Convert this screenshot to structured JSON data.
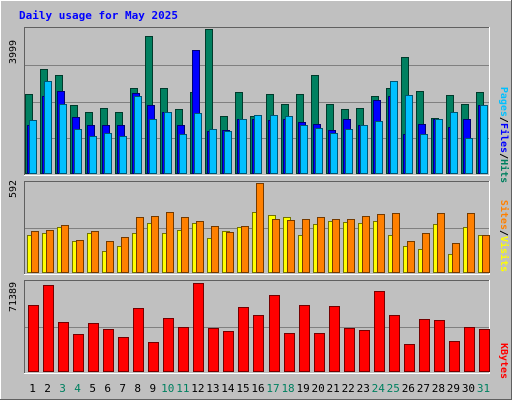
{
  "chart_data": [
    {
      "type": "bar",
      "title": "Daily usage for May 2025",
      "panel": "hits-files-pages",
      "categories": [
        "1",
        "2",
        "3",
        "4",
        "5",
        "6",
        "7",
        "8",
        "9",
        "10",
        "11",
        "12",
        "13",
        "14",
        "15",
        "16",
        "17",
        "18",
        "19",
        "20",
        "21",
        "22",
        "23",
        "24",
        "25",
        "26",
        "27",
        "28",
        "29",
        "30",
        "31"
      ],
      "weekend_days": [
        "3",
        "4",
        "10",
        "11",
        "17",
        "18",
        "24",
        "25",
        "31"
      ],
      "ytick_label": "3999",
      "ylim": [
        0,
        3999
      ],
      "right_labels": [
        "Hits",
        "Files",
        "Pages"
      ],
      "separator": "/",
      "series": [
        {
          "name": "Hits",
          "color": "#008060",
          "values": [
            2216,
            2886,
            2732,
            1890,
            1715,
            1828,
            1715,
            2376,
            3818,
            2364,
            1790,
            2251,
            4000,
            1600,
            2251,
            1600,
            2216,
            1920,
            2216,
            2732,
            1920,
            1790,
            1815,
            2148,
            2376,
            3224,
            2290,
            1545,
            2190,
            1920,
            2251
          ]
        },
        {
          "name": "Files",
          "color": "#0000ff",
          "values": [
            1350,
            2150,
            2280,
            1566,
            1345,
            1345,
            1346,
            2232,
            1894,
            1713,
            1345,
            3407,
            1196,
            1227,
            1527,
            1527,
            1501,
            1527,
            1421,
            1389,
            1203,
            1527,
            1345,
            2053,
            2150,
            1092,
            1389,
            1510,
            1310,
            1510,
            1900
          ]
        },
        {
          "name": "Pages",
          "color": "#00c0ff",
          "values": [
            1480,
            2560,
            1920,
            1232,
            1060,
            1140,
            1060,
            2156,
            1530,
            1700,
            1100,
            1680,
            1232,
            1190,
            1520,
            1630,
            1630,
            1600,
            1340,
            1256,
            1140,
            1232,
            1340,
            1450,
            2560,
            2190,
            1100,
            1520,
            1720,
            1000,
            1900
          ]
        }
      ]
    },
    {
      "type": "bar",
      "panel": "visits-sites",
      "categories": [
        "1",
        "2",
        "3",
        "4",
        "5",
        "6",
        "7",
        "8",
        "9",
        "10",
        "11",
        "12",
        "13",
        "14",
        "15",
        "16",
        "17",
        "18",
        "19",
        "20",
        "21",
        "22",
        "23",
        "24",
        "25",
        "26",
        "27",
        "28",
        "29",
        "30",
        "31"
      ],
      "ytick_label": "592",
      "ylim": [
        0,
        592
      ],
      "right_labels": [
        "Visits",
        "Sites"
      ],
      "separator": "/",
      "series": [
        {
          "name": "Visits",
          "color": "#ffff00",
          "values": [
            250,
            265,
            300,
            210,
            260,
            145,
            180,
            260,
            330,
            260,
            280,
            330,
            230,
            278,
            301,
            402,
            383,
            367,
            248,
            322,
            343,
            335,
            330,
            342,
            250,
            177,
            160,
            320,
            125,
            300,
            248
          ]
        },
        {
          "name": "Sites",
          "color": "#ff8000",
          "values": [
            277,
            286,
            317,
            215,
            273,
            212,
            238,
            369,
            372,
            402,
            366,
            341,
            306,
            272,
            308,
            590,
            358,
            350,
            356,
            368,
            355,
            352,
            372,
            390,
            392,
            211,
            261,
            395,
            195,
            397,
            247
          ]
        }
      ]
    },
    {
      "type": "bar",
      "panel": "kbytes",
      "categories": [
        "1",
        "2",
        "3",
        "4",
        "5",
        "6",
        "7",
        "8",
        "9",
        "10",
        "11",
        "12",
        "13",
        "14",
        "15",
        "16",
        "17",
        "18",
        "19",
        "20",
        "21",
        "22",
        "23",
        "24",
        "25",
        "26",
        "27",
        "28",
        "29",
        "30",
        "31"
      ],
      "ytick_label": "71389",
      "ylim": [
        0,
        71389
      ],
      "right_labels": [
        "KBytes"
      ],
      "series": [
        {
          "name": "KBytes",
          "color": "#ff0000",
          "values": [
            53000,
            69000,
            40000,
            30000,
            38500,
            34000,
            28000,
            50500,
            24000,
            42700,
            36000,
            70300,
            34700,
            32300,
            51300,
            45600,
            61000,
            31000,
            53000,
            31300,
            52300,
            34800,
            33000,
            64500,
            45600,
            22600,
            41700,
            41500,
            24900,
            35900,
            34500
          ]
        }
      ]
    }
  ]
}
